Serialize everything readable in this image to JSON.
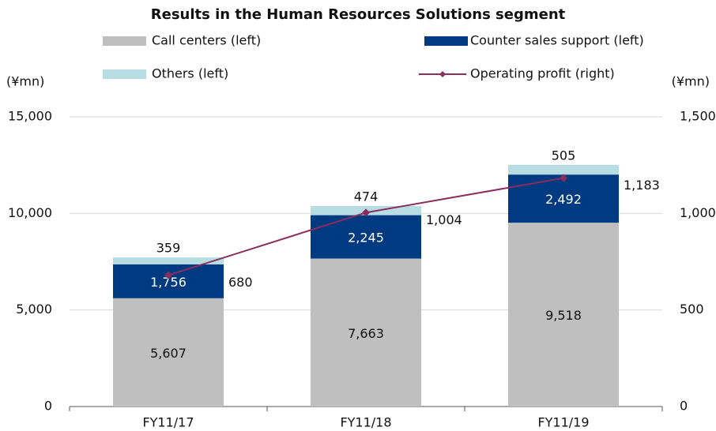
{
  "chart_data": {
    "type": "bar",
    "title": "Results in the Human Resources Solutions segment",
    "y_label": "(¥mn)",
    "y2_label": "(¥mn)",
    "categories": [
      "FY11/17",
      "FY11/18",
      "FY11/19"
    ],
    "series": [
      {
        "name": "Call centers (left)",
        "color": "#bfbfbf",
        "text_color": "#111111",
        "values": [
          5607,
          7663,
          9518
        ],
        "value_labels": [
          "5,607",
          "7,663",
          "9,518"
        ]
      },
      {
        "name": "Counter sales support (left)",
        "color": "#003a80",
        "text_color": "#ffffff",
        "values": [
          1756,
          2245,
          2492
        ],
        "value_labels": [
          "1,756",
          "2,245",
          "2,492"
        ]
      },
      {
        "name": "Others (left)",
        "color": "#b7dde3",
        "text_color": "#111111",
        "values": [
          359,
          474,
          505
        ]
      },
      {
        "name": "Operating profit (right)",
        "type": "line",
        "axis": "y2",
        "color": "#8b2d5e",
        "values": [
          680,
          1004,
          1183
        ],
        "value_labels": [
          "680",
          "1,004",
          "1,183"
        ]
      }
    ],
    "ylim": [
      0,
      15000
    ],
    "yticks": [
      0,
      {
        "value": 5000,
        "label": "5,000"
      },
      {
        "value": 10000,
        "label": "10,000"
      },
      {
        "value": 15000,
        "label": "15,000"
      }
    ],
    "y2lim": [
      0,
      1500
    ],
    "y2ticks": [
      0,
      500,
      {
        "value": 1000,
        "label": "1,000"
      },
      {
        "value": 1500,
        "label": "1,500"
      }
    ],
    "grid": true
  }
}
